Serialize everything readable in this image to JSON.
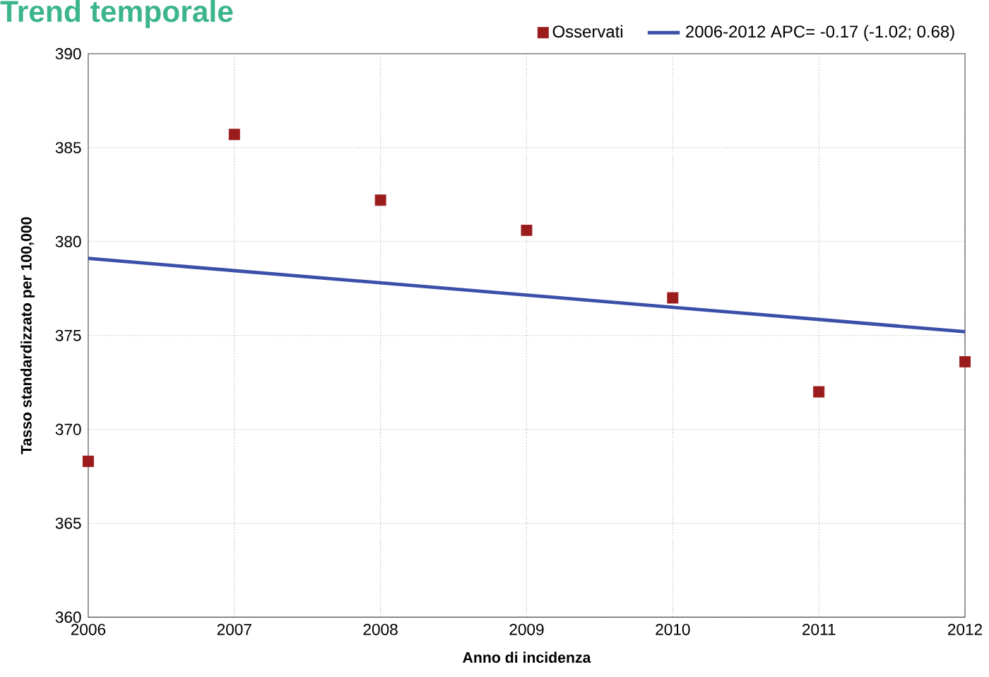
{
  "chart_data": {
    "type": "scatter",
    "title": "Trend temporale",
    "xlabel": "Anno di incidenza",
    "ylabel": "Tasso standardizzato per 100,000",
    "x": [
      2006,
      2007,
      2008,
      2009,
      2010,
      2011,
      2012
    ],
    "series": [
      {
        "name": "Osservati",
        "marker": "square",
        "color": "#9b1c1c",
        "values": [
          368.3,
          385.7,
          382.2,
          380.6,
          377.0,
          372.0,
          373.6
        ]
      },
      {
        "name": "2006-2012 APC= -0.17 (-1.02; 0.68)",
        "type": "line",
        "marker": "none",
        "color": "#3a4fa8",
        "x": [
          2006,
          2012
        ],
        "values": [
          379.1,
          375.2
        ]
      }
    ],
    "xlim": [
      2006,
      2012
    ],
    "xticks": [
      2006,
      2007,
      2008,
      2009,
      2010,
      2011,
      2012
    ],
    "ylim": [
      360,
      390
    ],
    "yticks": [
      360,
      365,
      370,
      375,
      380,
      385,
      390
    ],
    "grid": true,
    "legend": "top right"
  }
}
